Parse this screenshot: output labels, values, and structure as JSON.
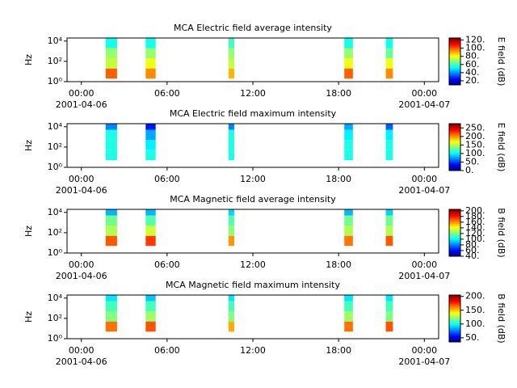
{
  "chart_data": [
    {
      "type": "spectrogram",
      "title": "MCA  Electric field average intensity",
      "y_label": "Hz",
      "colorbar_label": "E field (dB)",
      "xlim": [
        -1,
        25
      ],
      "xticks": [
        {
          "value": 0,
          "label": "00:00"
        },
        {
          "value": 6,
          "label": "06:00"
        },
        {
          "value": 12,
          "label": "12:00"
        },
        {
          "value": 18,
          "label": "18:00"
        },
        {
          "value": 24,
          "label": "00:00"
        }
      ],
      "x_dates": [
        {
          "value": 0,
          "label": "2001-04-06"
        },
        {
          "value": 24,
          "label": "2001-04-07"
        }
      ],
      "ylim": [
        1,
        20000
      ],
      "log_y": true,
      "yticks": [
        {
          "value": 1,
          "label": "10⁰"
        },
        {
          "value": 100,
          "label": "10²"
        },
        {
          "value": 10000,
          "label": "10⁴"
        }
      ],
      "freq_edges": [
        2,
        20,
        200,
        2000,
        20000
      ],
      "x_ranges": [
        [
          1.7,
          2.5
        ],
        [
          4.5,
          5.2
        ],
        [
          10.3,
          10.7
        ],
        [
          18.4,
          19.0
        ],
        [
          21.3,
          21.8
        ]
      ],
      "values": [
        [
          100,
          75,
          70,
          55
        ],
        [
          95,
          80,
          70,
          55
        ],
        [
          90,
          75,
          70,
          60
        ],
        [
          100,
          80,
          70,
          55
        ],
        [
          95,
          80,
          65,
          55
        ]
      ],
      "clim": [
        10,
        125
      ],
      "cticks": [
        {
          "value": 20,
          "label": "20."
        },
        {
          "value": 40,
          "label": "40."
        },
        {
          "value": 60,
          "label": "60."
        },
        {
          "value": 80,
          "label": "80."
        },
        {
          "value": 100,
          "label": "100."
        },
        {
          "value": 120,
          "label": "120."
        }
      ]
    },
    {
      "type": "spectrogram",
      "title": "MCA  Electric field maximum intensity",
      "y_label": "Hz",
      "colorbar_label": "E field (dB)",
      "xlim": [
        -1,
        25
      ],
      "xticks": [
        {
          "value": 0,
          "label": "00:00"
        },
        {
          "value": 6,
          "label": "06:00"
        },
        {
          "value": 12,
          "label": "12:00"
        },
        {
          "value": 18,
          "label": "18:00"
        },
        {
          "value": 24,
          "label": "00:00"
        }
      ],
      "x_dates": [
        {
          "value": 0,
          "label": "2001-04-06"
        },
        {
          "value": 24,
          "label": "2001-04-07"
        }
      ],
      "ylim": [
        1,
        20000
      ],
      "log_y": true,
      "yticks": [
        {
          "value": 1,
          "label": "10⁰"
        },
        {
          "value": 100,
          "label": "10²"
        },
        {
          "value": 10000,
          "label": "10⁴"
        }
      ],
      "freq_edges": [
        5,
        50,
        500,
        5000,
        20000
      ],
      "x_ranges": [
        [
          1.7,
          2.5
        ],
        [
          4.5,
          5.2
        ],
        [
          10.3,
          10.7
        ],
        [
          18.4,
          19.0
        ],
        [
          21.3,
          21.8
        ]
      ],
      "values": [
        [
          110,
          110,
          110,
          70
        ],
        [
          110,
          100,
          80,
          40
        ],
        [
          110,
          110,
          110,
          70
        ],
        [
          110,
          110,
          100,
          80
        ],
        [
          110,
          110,
          100,
          60
        ]
      ],
      "clim": [
        0,
        275
      ],
      "cticks": [
        {
          "value": 0,
          "label": "0."
        },
        {
          "value": 50,
          "label": "50."
        },
        {
          "value": 100,
          "label": "100."
        },
        {
          "value": 150,
          "label": "150."
        },
        {
          "value": 200,
          "label": "200."
        },
        {
          "value": 250,
          "label": "250."
        }
      ]
    },
    {
      "type": "spectrogram",
      "title": "MCA  Magnetic field average intensity",
      "y_label": "Hz",
      "colorbar_label": "B field (dB)",
      "xlim": [
        -1,
        25
      ],
      "xticks": [
        {
          "value": 0,
          "label": "00:00"
        },
        {
          "value": 6,
          "label": "06:00"
        },
        {
          "value": 12,
          "label": "12:00"
        },
        {
          "value": 18,
          "label": "18:00"
        },
        {
          "value": 24,
          "label": "00:00"
        }
      ],
      "x_dates": [
        {
          "value": 0,
          "label": "2001-04-06"
        },
        {
          "value": 24,
          "label": "2001-04-07"
        }
      ],
      "ylim": [
        1,
        20000
      ],
      "log_y": true,
      "yticks": [
        {
          "value": 1,
          "label": "10⁰"
        },
        {
          "value": 100,
          "label": "10²"
        },
        {
          "value": 10000,
          "label": "10⁴"
        }
      ],
      "freq_edges": [
        5,
        50,
        500,
        5000,
        20000
      ],
      "x_ranges": [
        [
          1.7,
          2.5
        ],
        [
          4.5,
          5.2
        ],
        [
          10.3,
          10.7
        ],
        [
          18.4,
          19.0
        ],
        [
          21.3,
          21.8
        ]
      ],
      "values": [
        [
          170,
          130,
          120,
          90
        ],
        [
          175,
          135,
          115,
          90
        ],
        [
          160,
          125,
          115,
          95
        ],
        [
          165,
          130,
          120,
          90
        ],
        [
          170,
          130,
          120,
          95
        ]
      ],
      "clim": [
        40,
        205
      ],
      "cticks": [
        {
          "value": 40,
          "label": "40."
        },
        {
          "value": 60,
          "label": "60."
        },
        {
          "value": 80,
          "label": "80."
        },
        {
          "value": 100,
          "label": "100."
        },
        {
          "value": 120,
          "label": "120."
        },
        {
          "value": 140,
          "label": "140."
        },
        {
          "value": 160,
          "label": "160."
        },
        {
          "value": 180,
          "label": "180."
        },
        {
          "value": 200,
          "label": "200."
        }
      ]
    },
    {
      "type": "spectrogram",
      "title": "MCA  Magnetic field maximum intensity",
      "y_label": "Hz",
      "colorbar_label": "B field (dB)",
      "xlim": [
        -1,
        25
      ],
      "xticks": [
        {
          "value": 0,
          "label": "00:00"
        },
        {
          "value": 6,
          "label": "06:00"
        },
        {
          "value": 12,
          "label": "12:00"
        },
        {
          "value": 18,
          "label": "18:00"
        },
        {
          "value": 24,
          "label": "00:00"
        }
      ],
      "x_dates": [
        {
          "value": 0,
          "label": "2001-04-06"
        },
        {
          "value": 24,
          "label": "2001-04-07"
        }
      ],
      "ylim": [
        1,
        20000
      ],
      "log_y": true,
      "yticks": [
        {
          "value": 1,
          "label": "10⁰"
        },
        {
          "value": 100,
          "label": "10²"
        },
        {
          "value": 10000,
          "label": "10⁴"
        }
      ],
      "freq_edges": [
        5,
        50,
        500,
        5000,
        20000
      ],
      "x_ranges": [
        [
          1.7,
          2.5
        ],
        [
          4.5,
          5.2
        ],
        [
          10.3,
          10.7
        ],
        [
          18.4,
          19.0
        ],
        [
          21.3,
          21.8
        ]
      ],
      "values": [
        [
          165,
          120,
          110,
          95
        ],
        [
          170,
          125,
          110,
          90
        ],
        [
          155,
          120,
          110,
          95
        ],
        [
          165,
          125,
          110,
          95
        ],
        [
          170,
          120,
          110,
          95
        ]
      ],
      "clim": [
        35,
        205
      ],
      "cticks": [
        {
          "value": 50,
          "label": "50."
        },
        {
          "value": 100,
          "label": "100."
        },
        {
          "value": 150,
          "label": "150."
        },
        {
          "value": 200,
          "label": "200."
        }
      ]
    }
  ]
}
